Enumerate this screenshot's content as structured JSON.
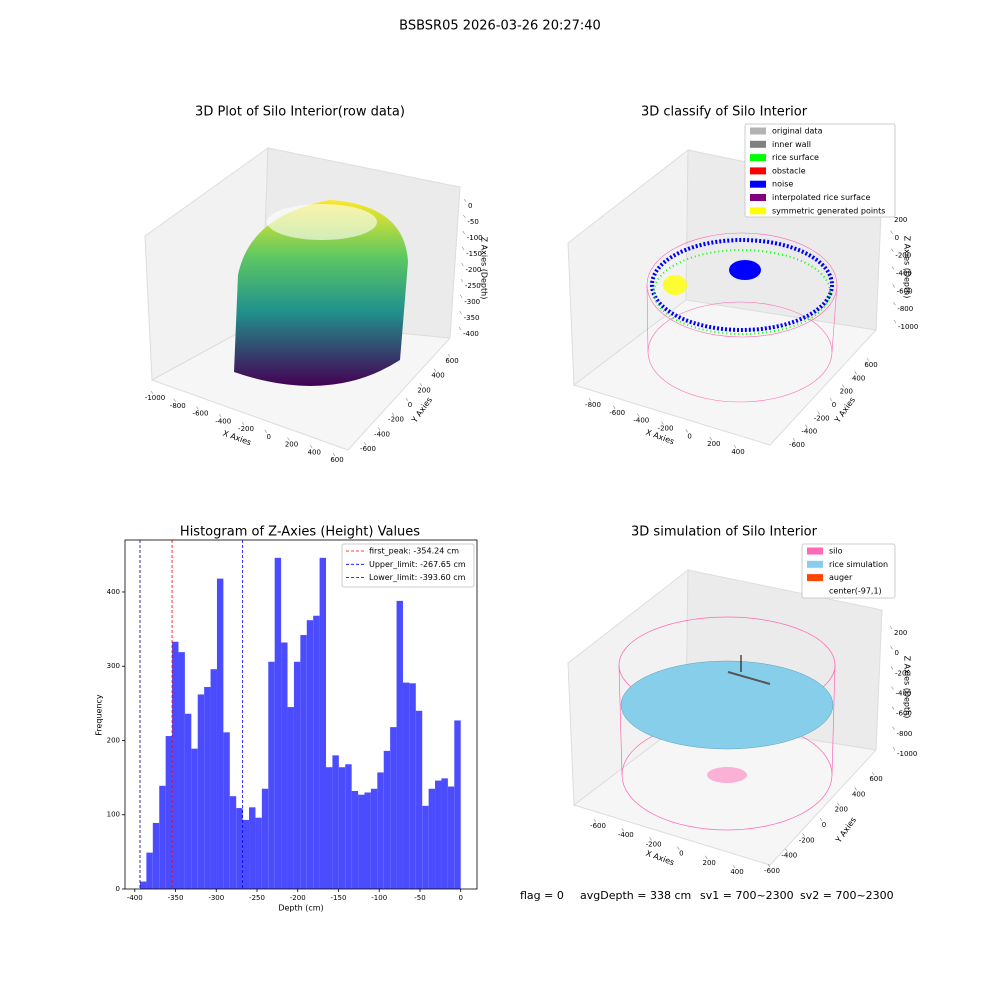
{
  "title": "BSBSR05 2026-03-26 20:27:40",
  "chart_data": [
    {
      "type": "scatter3d",
      "title": "3D Plot of Silo Interior(row data)",
      "xlabel": "X Axies",
      "ylabel": "Y Axies",
      "zlabel": "Z Axies (Depth)",
      "xticks": [
        -1000,
        -800,
        -600,
        -400,
        -200,
        0,
        200,
        400,
        600
      ],
      "yticks": [
        -600,
        -400,
        -200,
        0,
        200,
        400,
        600
      ],
      "zticks": [
        0,
        -50,
        -100,
        -150,
        -200,
        -250,
        -300,
        -350,
        -400
      ]
    },
    {
      "type": "scatter3d",
      "title": "3D classify of Silo Interior",
      "xlabel": "X Axies",
      "ylabel": "Y Axies",
      "zlabel": "Z Axies (Depth)",
      "xticks": [
        -800,
        -600,
        -400,
        -200,
        0,
        200,
        400
      ],
      "yticks": [
        -600,
        -400,
        -200,
        0,
        200,
        400,
        600
      ],
      "zticks": [
        200,
        0,
        -200,
        -400,
        -600,
        -800,
        -1000
      ],
      "legend": [
        {
          "name": "original data",
          "color": "#b3b3b3"
        },
        {
          "name": "inner wall",
          "color": "#808080"
        },
        {
          "name": "rice surface",
          "color": "#00ff00"
        },
        {
          "name": "obstacle",
          "color": "#ff0000"
        },
        {
          "name": "noise",
          "color": "#0000ff"
        },
        {
          "name": "interpolated rice surface",
          "color": "#800080"
        },
        {
          "name": "symmetric generated points",
          "color": "#ffff00"
        }
      ]
    },
    {
      "type": "histogram",
      "title": "Histogram of Z-Axies (Height) Values",
      "xlabel": "Depth (cm)",
      "ylabel": "Frequency",
      "color": "#4c4cff",
      "bins": [
        -393.6,
        -385.73,
        -377.86,
        -369.98,
        -362.11,
        -354.24,
        -346.37,
        -338.5,
        -330.62,
        -322.75,
        -314.88,
        -307.01,
        -299.14,
        -291.26,
        -283.39,
        -275.52,
        -267.65,
        -259.78,
        -251.9,
        -244.03,
        -236.16,
        -228.29,
        -220.42,
        -212.54,
        -204.67,
        -196.8,
        -188.93,
        -181.06,
        -173.18,
        -165.31,
        -157.44,
        -149.57,
        -141.7,
        -133.82,
        -125.95,
        -118.08,
        -110.21,
        -102.34,
        -94.46,
        -86.59,
        -78.72,
        -70.85,
        -62.98,
        -55.1,
        -47.23,
        -39.36,
        -31.49,
        -23.62,
        -15.74,
        -7.87,
        0
      ],
      "values": [
        10,
        49,
        89,
        139,
        206,
        333,
        319,
        236,
        189,
        262,
        272,
        296,
        418,
        211,
        125,
        109,
        93,
        110,
        96,
        135,
        306,
        446,
        332,
        245,
        306,
        342,
        362,
        368,
        446,
        164,
        180,
        164,
        168,
        132,
        127,
        130,
        135,
        157,
        186,
        218,
        388,
        278,
        277,
        240,
        112,
        135,
        146,
        149,
        138,
        227
      ],
      "xlim": [
        -412,
        20
      ],
      "ylim": [
        0,
        470
      ],
      "xticks": [
        -400,
        -350,
        -300,
        -250,
        -200,
        -150,
        -100,
        -50,
        0
      ],
      "yticks": [
        0,
        100,
        200,
        300,
        400
      ],
      "lines": [
        {
          "name": "first_peak: -354.24 cm",
          "value": -354.24,
          "color": "#ff0000"
        },
        {
          "name": "Upper_limit: -267.65 cm",
          "value": -267.65,
          "color": "#0000ff"
        },
        {
          "name": "Lower_limit: -393.60 cm",
          "value": -393.6,
          "color": "#00008b"
        }
      ]
    },
    {
      "type": "surface3d",
      "title": "3D simulation of Silo Interior",
      "xlabel": "X Axies",
      "ylabel": "Y Axies",
      "zlabel": "Z Axies (Depth)",
      "xticks": [
        -600,
        -400,
        -200,
        0,
        200,
        400
      ],
      "yticks": [
        -600,
        -400,
        -200,
        0,
        200,
        400,
        600
      ],
      "zticks": [
        200,
        0,
        -200,
        -400,
        -600,
        -800,
        -1000
      ],
      "legend": [
        {
          "name": "silo",
          "color": "#ff69b4"
        },
        {
          "name": "rice simulation",
          "color": "#87ceeb"
        },
        {
          "name": "auger",
          "color": "#ff4500"
        },
        {
          "name": "center(-97,1)",
          "color": "#ffffff"
        }
      ]
    }
  ],
  "footer": [
    "flag = 0",
    "avgDepth = 338 cm",
    "sv1 = 700~2300",
    "sv2 = 700~2300"
  ]
}
